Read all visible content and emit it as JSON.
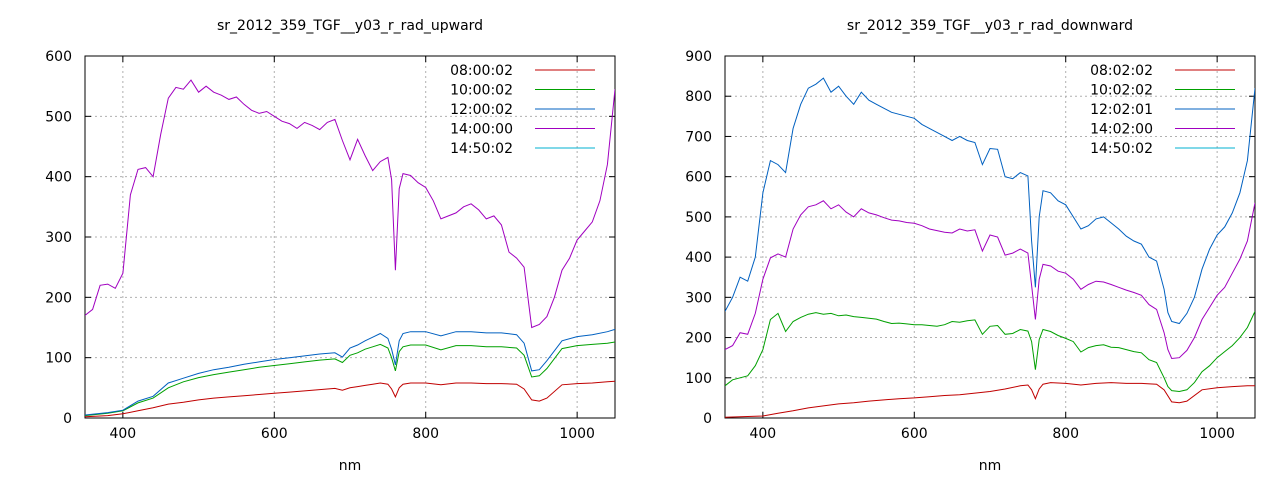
{
  "chart_data": [
    {
      "type": "line",
      "title": "sr_2012_359_TGF__y03_r_rad_upward",
      "xlabel": "nm",
      "ylabel": "",
      "xlim": [
        350,
        1050
      ],
      "ylim": [
        0,
        600
      ],
      "xticks": [
        400,
        600,
        800,
        1000
      ],
      "yticks": [
        0,
        100,
        200,
        300,
        400,
        500,
        600
      ],
      "grid": true,
      "legend_position": "top-right",
      "series": [
        {
          "name": "08:00:02",
          "color": "#c00000",
          "x": [
            350,
            380,
            400,
            420,
            440,
            460,
            480,
            500,
            520,
            540,
            560,
            580,
            600,
            620,
            640,
            660,
            680,
            690,
            700,
            710,
            720,
            730,
            740,
            750,
            755,
            760,
            765,
            770,
            780,
            800,
            820,
            840,
            860,
            880,
            900,
            920,
            930,
            940,
            950,
            960,
            980,
            1000,
            1020,
            1040,
            1050
          ],
          "y": [
            2,
            4,
            7,
            12,
            17,
            23,
            26,
            30,
            33,
            35,
            37,
            39,
            41,
            43,
            45,
            47,
            49,
            46,
            50,
            52,
            54,
            56,
            58,
            56,
            48,
            35,
            50,
            56,
            58,
            58,
            55,
            58,
            58,
            57,
            57,
            56,
            48,
            30,
            28,
            33,
            55,
            57,
            58,
            60,
            61
          ]
        },
        {
          "name": "10:00:02",
          "color": "#00a000",
          "x": [
            350,
            380,
            400,
            420,
            440,
            460,
            480,
            500,
            520,
            540,
            560,
            580,
            600,
            620,
            640,
            660,
            680,
            690,
            700,
            710,
            720,
            730,
            740,
            750,
            755,
            760,
            765,
            770,
            780,
            800,
            820,
            840,
            860,
            880,
            900,
            920,
            930,
            940,
            950,
            960,
            980,
            1000,
            1020,
            1040,
            1050
          ],
          "y": [
            4,
            8,
            12,
            25,
            33,
            50,
            60,
            67,
            72,
            76,
            80,
            84,
            87,
            90,
            93,
            96,
            98,
            92,
            104,
            108,
            114,
            118,
            122,
            116,
            100,
            78,
            110,
            118,
            121,
            121,
            113,
            120,
            120,
            118,
            118,
            116,
            104,
            68,
            70,
            82,
            115,
            120,
            122,
            124,
            126
          ]
        },
        {
          "name": "12:00:02",
          "color": "#0060c0",
          "x": [
            350,
            380,
            400,
            420,
            440,
            460,
            480,
            500,
            520,
            540,
            560,
            580,
            600,
            620,
            640,
            660,
            680,
            690,
            700,
            710,
            720,
            730,
            740,
            750,
            755,
            760,
            765,
            770,
            780,
            800,
            820,
            840,
            860,
            880,
            900,
            920,
            930,
            940,
            950,
            960,
            980,
            1000,
            1020,
            1040,
            1050
          ],
          "y": [
            5,
            9,
            13,
            28,
            36,
            58,
            66,
            74,
            80,
            84,
            89,
            93,
            97,
            100,
            103,
            106,
            108,
            101,
            116,
            121,
            128,
            134,
            140,
            132,
            114,
            88,
            128,
            140,
            143,
            143,
            136,
            143,
            143,
            141,
            141,
            138,
            124,
            78,
            80,
            95,
            128,
            135,
            138,
            143,
            147
          ]
        },
        {
          "name": "14:00:00",
          "color": "#a000c0",
          "x": [
            350,
            360,
            370,
            380,
            390,
            400,
            410,
            420,
            430,
            440,
            450,
            460,
            470,
            480,
            490,
            500,
            510,
            520,
            530,
            540,
            550,
            560,
            570,
            580,
            590,
            600,
            610,
            620,
            630,
            640,
            650,
            660,
            670,
            680,
            690,
            700,
            710,
            720,
            730,
            740,
            750,
            755,
            760,
            765,
            770,
            780,
            790,
            800,
            810,
            820,
            830,
            840,
            850,
            860,
            870,
            880,
            890,
            900,
            910,
            920,
            930,
            935,
            940,
            950,
            960,
            970,
            980,
            990,
            1000,
            1010,
            1020,
            1030,
            1040,
            1050
          ],
          "y": [
            170,
            180,
            220,
            222,
            215,
            240,
            370,
            412,
            415,
            400,
            470,
            530,
            548,
            545,
            560,
            540,
            550,
            540,
            535,
            528,
            532,
            520,
            510,
            505,
            508,
            500,
            492,
            488,
            480,
            490,
            485,
            478,
            490,
            495,
            460,
            428,
            462,
            435,
            410,
            425,
            432,
            395,
            245,
            380,
            405,
            402,
            390,
            382,
            360,
            330,
            335,
            340,
            350,
            355,
            345,
            330,
            335,
            320,
            275,
            265,
            250,
            200,
            150,
            155,
            168,
            200,
            245,
            265,
            295,
            310,
            325,
            360,
            420,
            545
          ]
        },
        {
          "name": "14:50:02",
          "color": "#00b0d0",
          "x": [],
          "y": []
        }
      ]
    },
    {
      "type": "line",
      "title": "sr_2012_359_TGF__y03_r_rad_downward",
      "xlabel": "nm",
      "ylabel": "",
      "xlim": [
        350,
        1050
      ],
      "ylim": [
        0,
        900
      ],
      "xticks": [
        400,
        600,
        800,
        1000
      ],
      "yticks": [
        0,
        100,
        200,
        300,
        400,
        500,
        600,
        700,
        800,
        900
      ],
      "grid": true,
      "legend_position": "top-right",
      "series": [
        {
          "name": "08:02:02",
          "color": "#c00000",
          "x": [
            350,
            400,
            420,
            440,
            460,
            480,
            500,
            520,
            540,
            560,
            580,
            600,
            620,
            640,
            660,
            680,
            700,
            720,
            740,
            750,
            755,
            760,
            765,
            770,
            780,
            800,
            820,
            840,
            860,
            880,
            900,
            920,
            930,
            940,
            950,
            960,
            980,
            1000,
            1020,
            1040,
            1050
          ],
          "y": [
            2,
            5,
            12,
            18,
            25,
            30,
            35,
            38,
            42,
            45,
            48,
            50,
            53,
            56,
            58,
            62,
            66,
            72,
            80,
            82,
            70,
            48,
            72,
            84,
            88,
            86,
            82,
            86,
            88,
            86,
            86,
            84,
            70,
            40,
            38,
            42,
            70,
            75,
            78,
            80,
            80
          ]
        },
        {
          "name": "10:02:02",
          "color": "#00a000",
          "x": [
            350,
            360,
            370,
            380,
            390,
            400,
            410,
            420,
            430,
            440,
            450,
            460,
            470,
            480,
            490,
            500,
            510,
            520,
            530,
            540,
            550,
            560,
            570,
            580,
            590,
            600,
            610,
            620,
            630,
            640,
            650,
            660,
            670,
            680,
            690,
            700,
            710,
            720,
            730,
            740,
            750,
            755,
            760,
            765,
            770,
            780,
            790,
            800,
            810,
            820,
            830,
            840,
            850,
            860,
            870,
            880,
            890,
            900,
            910,
            920,
            930,
            935,
            940,
            950,
            960,
            970,
            980,
            990,
            1000,
            1010,
            1020,
            1030,
            1040,
            1050
          ],
          "y": [
            80,
            95,
            100,
            105,
            130,
            170,
            245,
            260,
            215,
            240,
            250,
            258,
            262,
            258,
            260,
            254,
            256,
            252,
            250,
            248,
            246,
            240,
            235,
            236,
            234,
            232,
            232,
            230,
            228,
            232,
            240,
            238,
            242,
            244,
            208,
            228,
            230,
            208,
            210,
            220,
            216,
            190,
            120,
            195,
            220,
            215,
            205,
            198,
            190,
            164,
            175,
            180,
            182,
            176,
            175,
            170,
            165,
            162,
            145,
            138,
            100,
            78,
            68,
            66,
            70,
            88,
            115,
            130,
            150,
            165,
            180,
            200,
            225,
            265
          ]
        },
        {
          "name": "12:02:01",
          "color": "#0060c0",
          "x": [
            350,
            360,
            370,
            380,
            390,
            400,
            410,
            420,
            430,
            440,
            450,
            460,
            470,
            480,
            490,
            500,
            510,
            520,
            530,
            540,
            550,
            560,
            570,
            580,
            590,
            600,
            610,
            620,
            630,
            640,
            650,
            660,
            670,
            680,
            690,
            700,
            710,
            720,
            730,
            740,
            750,
            755,
            760,
            765,
            770,
            780,
            790,
            800,
            810,
            820,
            830,
            840,
            850,
            860,
            870,
            880,
            890,
            900,
            910,
            920,
            930,
            935,
            940,
            950,
            960,
            970,
            980,
            990,
            1000,
            1010,
            1020,
            1030,
            1040,
            1050
          ],
          "y": [
            265,
            300,
            350,
            340,
            400,
            560,
            640,
            630,
            610,
            720,
            780,
            820,
            830,
            845,
            810,
            825,
            800,
            780,
            810,
            790,
            780,
            770,
            760,
            755,
            750,
            745,
            730,
            720,
            710,
            700,
            690,
            700,
            690,
            685,
            630,
            670,
            668,
            600,
            595,
            610,
            602,
            440,
            325,
            500,
            565,
            560,
            540,
            530,
            500,
            470,
            478,
            495,
            500,
            485,
            470,
            452,
            440,
            432,
            400,
            390,
            320,
            262,
            240,
            235,
            260,
            300,
            370,
            420,
            455,
            475,
            510,
            560,
            640,
            820
          ]
        },
        {
          "name": "14:02:00",
          "color": "#a000c0",
          "x": [
            350,
            360,
            370,
            380,
            390,
            400,
            410,
            420,
            430,
            440,
            450,
            460,
            470,
            480,
            490,
            500,
            510,
            520,
            530,
            540,
            550,
            560,
            570,
            580,
            590,
            600,
            610,
            620,
            630,
            640,
            650,
            660,
            670,
            680,
            690,
            700,
            710,
            720,
            730,
            740,
            750,
            755,
            760,
            765,
            770,
            780,
            790,
            800,
            810,
            820,
            830,
            840,
            850,
            860,
            870,
            880,
            890,
            900,
            910,
            920,
            930,
            935,
            940,
            950,
            960,
            970,
            980,
            990,
            1000,
            1010,
            1020,
            1030,
            1040,
            1050
          ],
          "y": [
            170,
            180,
            212,
            208,
            260,
            345,
            398,
            408,
            400,
            470,
            505,
            525,
            530,
            540,
            520,
            530,
            512,
            500,
            520,
            510,
            505,
            498,
            492,
            490,
            486,
            484,
            478,
            470,
            466,
            462,
            460,
            470,
            465,
            468,
            415,
            455,
            450,
            405,
            410,
            420,
            410,
            330,
            245,
            345,
            382,
            378,
            365,
            360,
            345,
            320,
            332,
            340,
            338,
            332,
            325,
            318,
            312,
            305,
            282,
            270,
            212,
            170,
            148,
            150,
            168,
            200,
            245,
            275,
            305,
            325,
            360,
            395,
            440,
            535
          ]
        },
        {
          "name": "14:50:02",
          "color": "#00b0d0",
          "x": [],
          "y": []
        }
      ]
    }
  ]
}
